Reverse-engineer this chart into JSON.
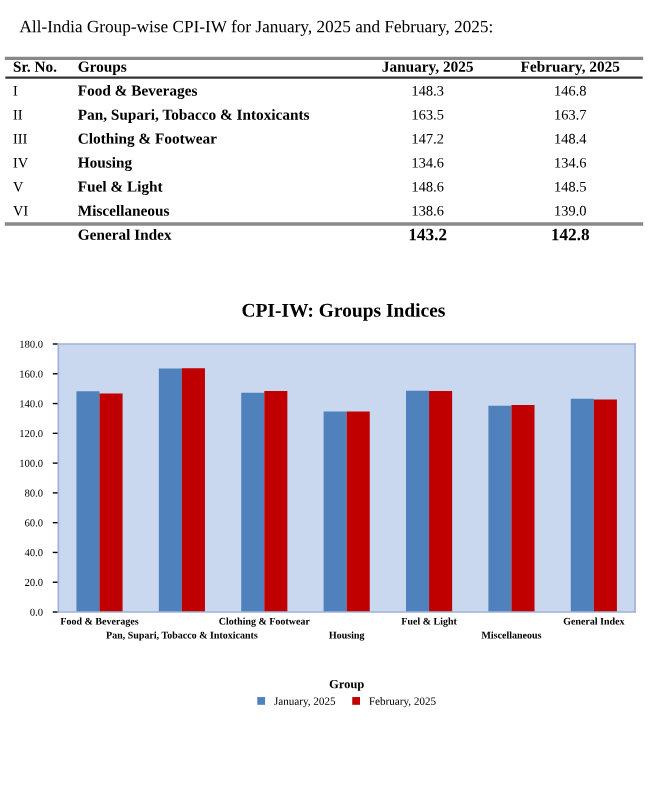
{
  "chart_data": {
    "type": "bar",
    "title": "CPI-IW: Groups Indices",
    "xlabel": "Group",
    "categories": [
      "Food & Beverages",
      "Pan, Supari, Tobacco & Intoxicants",
      "Clothing & Footwear",
      "Housing",
      "Fuel & Light",
      "Miscellaneous",
      "General Index"
    ],
    "series": [
      {
        "name": "January, 2025",
        "color": "#4f81bd",
        "values": [
          148.3,
          163.5,
          147.2,
          134.6,
          148.6,
          138.6,
          143.2
        ]
      },
      {
        "name": "February, 2025",
        "color": "#c00000",
        "values": [
          146.8,
          163.7,
          148.4,
          134.6,
          148.5,
          139.0,
          142.8
        ]
      }
    ],
    "ylim": [
      0,
      180
    ],
    "yticks": [
      {
        "value": 0,
        "label": "0.0"
      },
      {
        "value": 20,
        "label": "20.0"
      },
      {
        "value": 40,
        "label": "40.0"
      },
      {
        "value": 60,
        "label": "60.0"
      },
      {
        "value": 80,
        "label": "80.0"
      },
      {
        "value": 100,
        "label": "100.0"
      },
      {
        "value": 120,
        "label": "120.0"
      },
      {
        "value": 140,
        "label": "140.0"
      },
      {
        "value": 160,
        "label": "160.0"
      },
      {
        "value": 180,
        "label": "180.0"
      }
    ],
    "grid": false,
    "legend": "bottom",
    "annotations": [
      "All-India Group-wise CPI-IW for January, 2025 and February, 2025:",
      "Sr. No.",
      "Groups",
      "January, 2025",
      "February, 2025",
      "I",
      "Food & Beverages",
      "148.3",
      "146.8",
      "II",
      "Pan, Supari, Tobacco & Intoxicants",
      "163.5",
      "163.7",
      "III",
      "Clothing & Footwear",
      "147.2",
      "148.4",
      "IV",
      "Housing",
      "134.6",
      "134.6",
      "V",
      "Fuel & Light",
      "148.6",
      "148.5",
      "VI",
      "Miscellaneous",
      "138.6",
      "139.0",
      "General Index",
      "143.2",
      "142.8"
    ]
  }
}
